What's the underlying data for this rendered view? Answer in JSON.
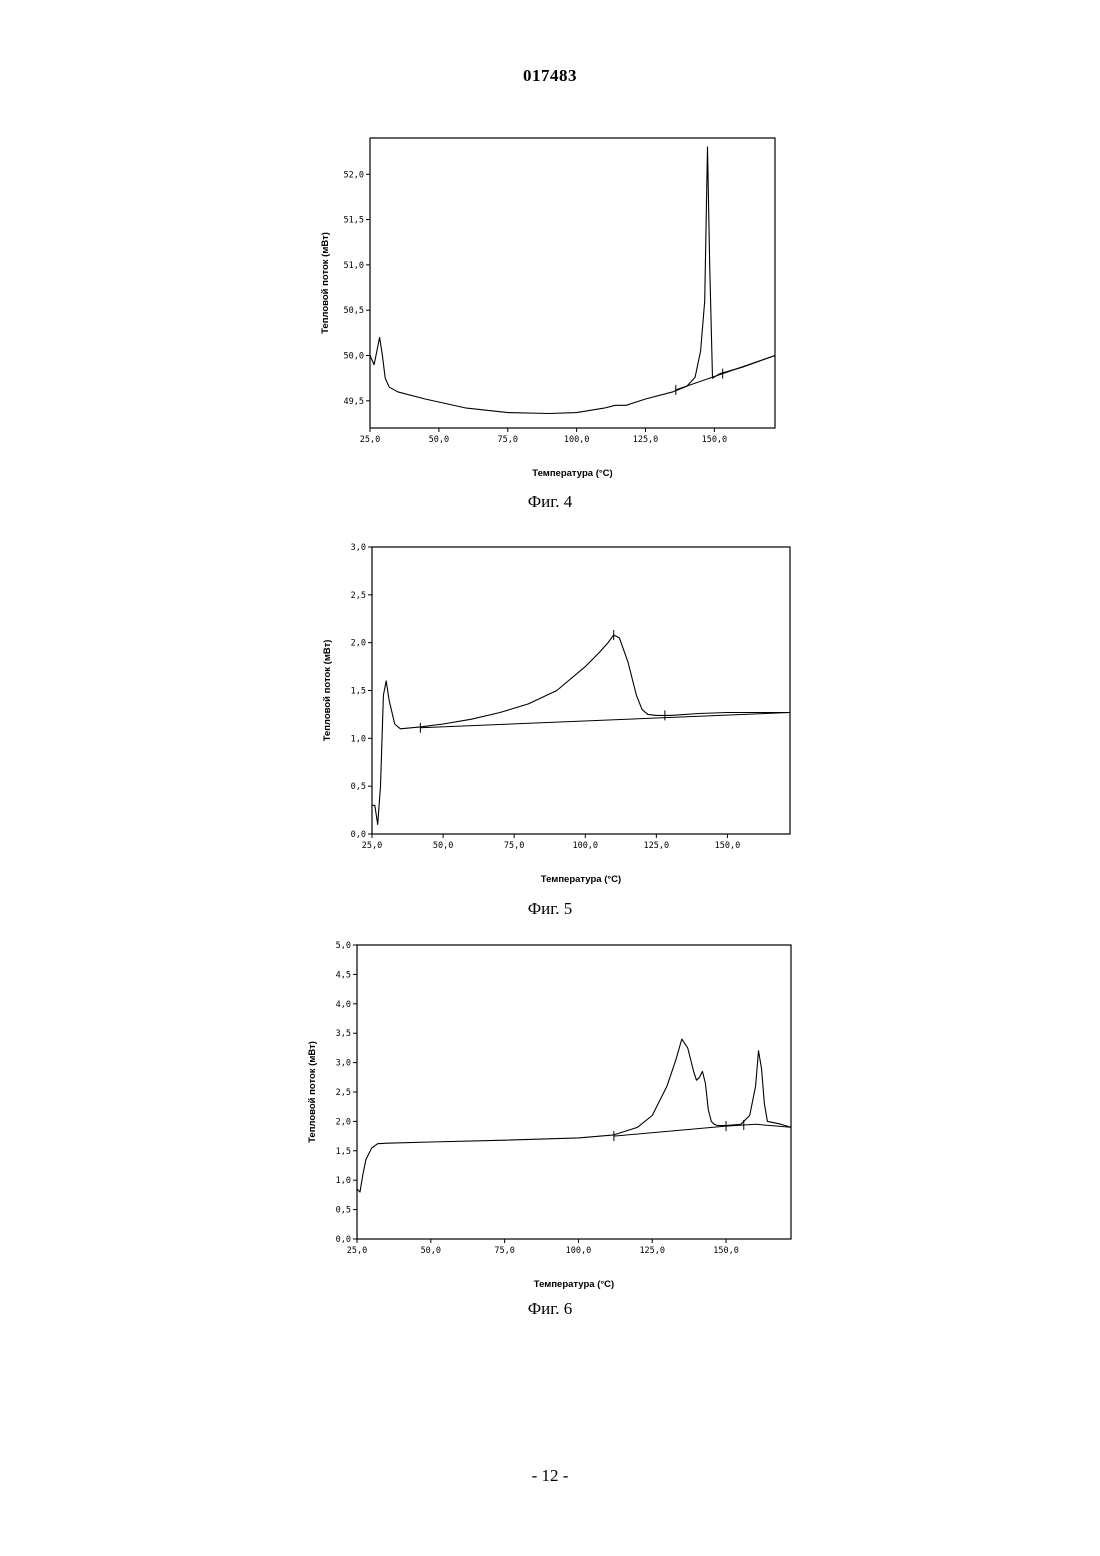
{
  "document": {
    "number": "017483",
    "page": "- 12 -"
  },
  "chart_data": [
    {
      "type": "line",
      "caption": "Фиг. 4",
      "xlabel": "Температура (°C)",
      "ylabel": "Тепловой поток (мВт)",
      "xlim": [
        25,
        172
      ],
      "ylim": [
        49.2,
        52.4
      ],
      "xticks": [
        25,
        50,
        75,
        100,
        125,
        150
      ],
      "xtick_labels": [
        "25,0",
        "50,0",
        "75,0",
        "100,0",
        "125,0",
        "150,0"
      ],
      "yticks": [
        49.5,
        50.0,
        50.5,
        51.0,
        51.5,
        52.0
      ],
      "ytick_labels": [
        "49,5",
        "50,0",
        "50,5",
        "51,0",
        "51,5",
        "52,0"
      ],
      "series": [
        {
          "x": [
            25,
            26.5,
            27.5,
            28.5,
            29.5,
            30.5,
            32,
            35,
            45,
            60,
            75,
            90,
            100,
            110,
            114,
            118,
            125,
            135,
            140,
            143,
            145,
            146.5,
            147.5,
            148.3,
            149.3,
            152,
            160,
            172
          ],
          "y": [
            50.0,
            49.9,
            50.05,
            50.2,
            50.0,
            49.75,
            49.65,
            49.6,
            49.52,
            49.42,
            49.37,
            49.36,
            49.37,
            49.42,
            49.45,
            49.45,
            49.52,
            49.6,
            49.66,
            49.76,
            50.05,
            50.6,
            52.3,
            51.0,
            49.75,
            49.8,
            49.87,
            50.0
          ]
        }
      ],
      "baseline": {
        "x": [
          136,
          172
        ],
        "y": [
          49.62,
          50.0
        ]
      },
      "markers": [
        {
          "x": 136,
          "y": 49.62
        },
        {
          "x": 153,
          "y": 49.8
        }
      ]
    },
    {
      "type": "line",
      "caption": "Фиг. 5",
      "xlabel": "Температура (°C)",
      "ylabel": "Тепловой поток (мВт)",
      "xlim": [
        25,
        172
      ],
      "ylim": [
        0,
        3.0
      ],
      "xticks": [
        25,
        50,
        75,
        100,
        125,
        150
      ],
      "xtick_labels": [
        "25,0",
        "50,0",
        "75,0",
        "100,0",
        "125,0",
        "150,0"
      ],
      "yticks": [
        0,
        0.5,
        1.0,
        1.5,
        2.0,
        2.5,
        3.0
      ],
      "ytick_labels": [
        "0,0",
        "0,5",
        "1,0",
        "1,5",
        "2,0",
        "2,5",
        "3,0"
      ],
      "series": [
        {
          "x": [
            25,
            26,
            27,
            28,
            29,
            30,
            31,
            33,
            35,
            42,
            50,
            60,
            70,
            80,
            90,
            100,
            105,
            108,
            110,
            112,
            115,
            118,
            120,
            122,
            125,
            130,
            140,
            150,
            160,
            172
          ],
          "y": [
            0.3,
            0.3,
            0.1,
            0.5,
            1.45,
            1.6,
            1.4,
            1.15,
            1.1,
            1.12,
            1.15,
            1.2,
            1.27,
            1.36,
            1.5,
            1.75,
            1.9,
            2.0,
            2.08,
            2.05,
            1.8,
            1.45,
            1.3,
            1.25,
            1.24,
            1.24,
            1.26,
            1.27,
            1.27,
            1.27
          ]
        }
      ],
      "baseline": {
        "x": [
          42,
          172
        ],
        "y": [
          1.11,
          1.27
        ]
      },
      "markers": [
        {
          "x": 42,
          "y": 1.11
        },
        {
          "x": 110,
          "y": 2.08
        },
        {
          "x": 128,
          "y": 1.24
        }
      ]
    },
    {
      "type": "line",
      "caption": "Фиг. 6",
      "xlabel": "Температура (°C)",
      "ylabel": "Тепловой поток (мВт)",
      "xlim": [
        25,
        172
      ],
      "ylim": [
        0,
        5.0
      ],
      "xticks": [
        25,
        50,
        75,
        100,
        125,
        150
      ],
      "xtick_labels": [
        "25,0",
        "50,0",
        "75,0",
        "100,0",
        "125,0",
        "150,0"
      ],
      "yticks": [
        0,
        0.5,
        1.0,
        1.5,
        2.0,
        2.5,
        3.0,
        3.5,
        4.0,
        4.5,
        5.0
      ],
      "ytick_labels": [
        "0,0",
        "0,5",
        "1,0",
        "1,5",
        "2,0",
        "2,5",
        "3,0",
        "3,5",
        "4,0",
        "4,5",
        "5,0"
      ],
      "series": [
        {
          "x": [
            25,
            26,
            27,
            28,
            29,
            30,
            32,
            35,
            50,
            75,
            100,
            112,
            120,
            125,
            130,
            133,
            135,
            137,
            139,
            140,
            141,
            142,
            143,
            144,
            145,
            146,
            147,
            150,
            155,
            158,
            160,
            161,
            162,
            163,
            164,
            166,
            168,
            170,
            172
          ],
          "y": [
            0.85,
            0.8,
            1.1,
            1.35,
            1.45,
            1.55,
            1.62,
            1.63,
            1.65,
            1.68,
            1.72,
            1.77,
            1.9,
            2.1,
            2.6,
            3.05,
            3.4,
            3.25,
            2.85,
            2.7,
            2.75,
            2.85,
            2.65,
            2.2,
            2.0,
            1.95,
            1.93,
            1.93,
            1.95,
            2.1,
            2.6,
            3.2,
            2.9,
            2.3,
            2.0,
            1.98,
            1.96,
            1.93,
            1.9
          ]
        }
      ],
      "baseline": {
        "x": [
          112,
          150,
          160,
          172
        ],
        "y": [
          1.75,
          1.92,
          1.95,
          1.9
        ]
      },
      "markers": [
        {
          "x": 112,
          "y": 1.75
        },
        {
          "x": 150,
          "y": 1.92
        },
        {
          "x": 156,
          "y": 1.94
        }
      ]
    }
  ]
}
